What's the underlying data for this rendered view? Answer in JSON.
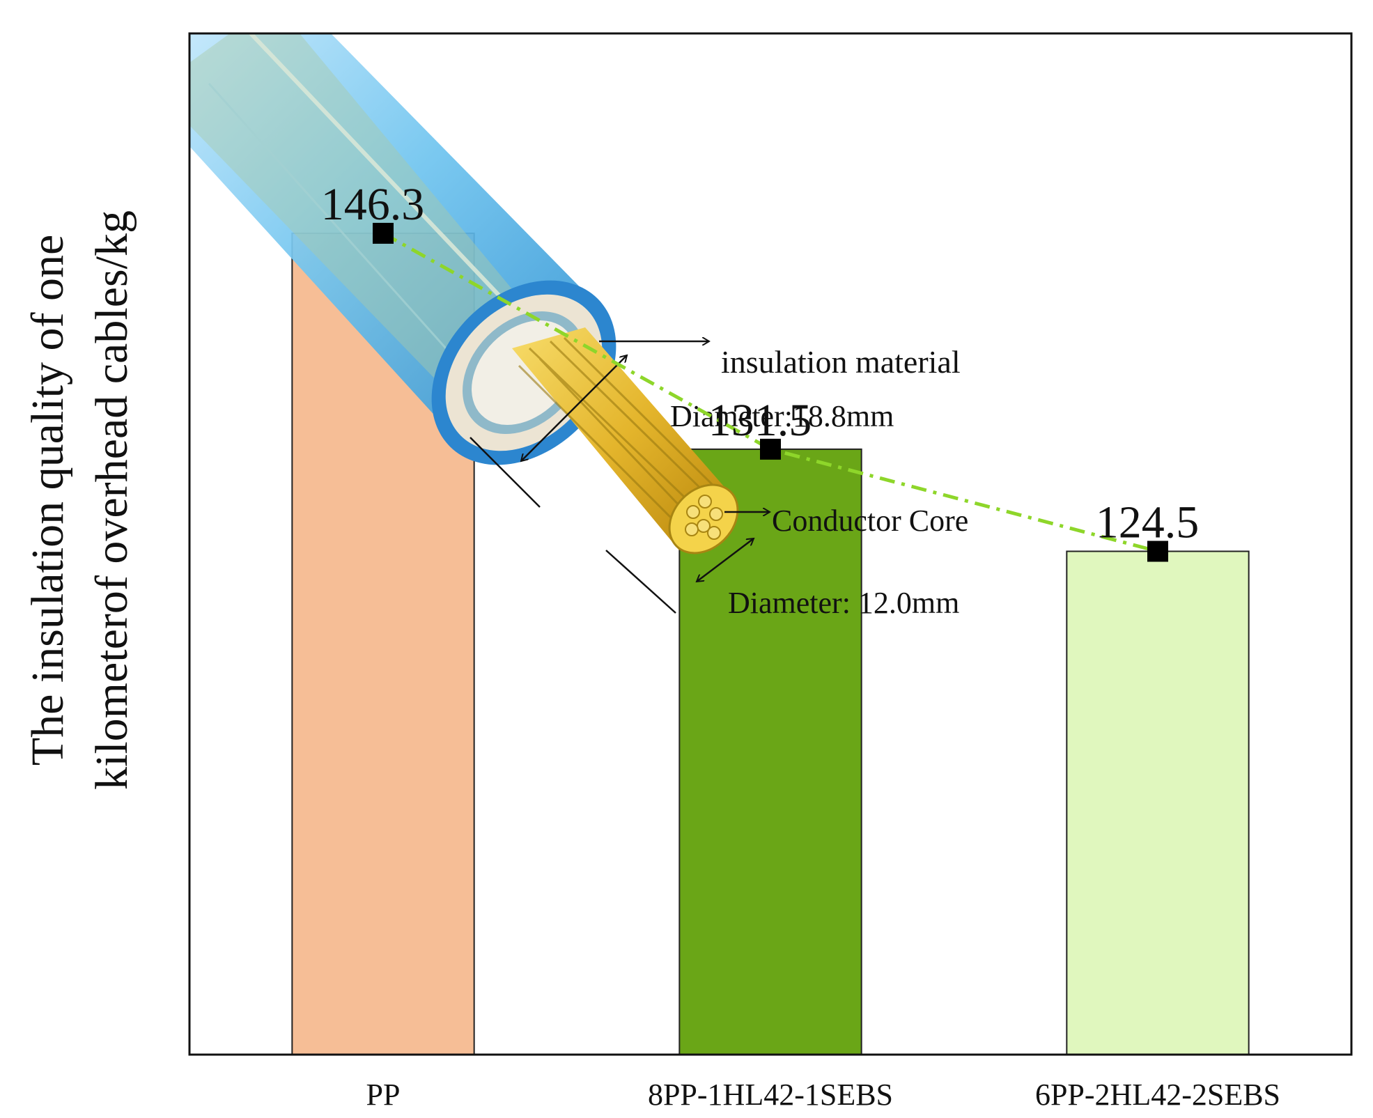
{
  "chart_data": {
    "type": "bar",
    "title": "",
    "xlabel": "",
    "ylabel_lines": [
      "The insulation quality of one",
      "kilometerof overhead cables/kg"
    ],
    "ylim": [
      90,
      160
    ],
    "grid": false,
    "categories": [
      "PP",
      "8PP-1HL42-1SEBS",
      "6PP-2HL42-2SEBS"
    ],
    "values": [
      146.3,
      131.5,
      124.5
    ],
    "value_labels": [
      "146.3",
      "131.5",
      "124.5"
    ],
    "bar_colors": [
      "#f6be96",
      "#6aa617",
      "#e0f7be"
    ],
    "trend_line": {
      "style": "dash-dot",
      "color": "#8ed62a",
      "marker": "square",
      "marker_color": "#000000"
    },
    "inset": {
      "description_icon": "cable-cross-section-icon",
      "annotations": [
        "insulation material",
        "Diameter:18.8mm",
        "Conductor Core",
        "Diameter: 12.0mm"
      ]
    }
  }
}
